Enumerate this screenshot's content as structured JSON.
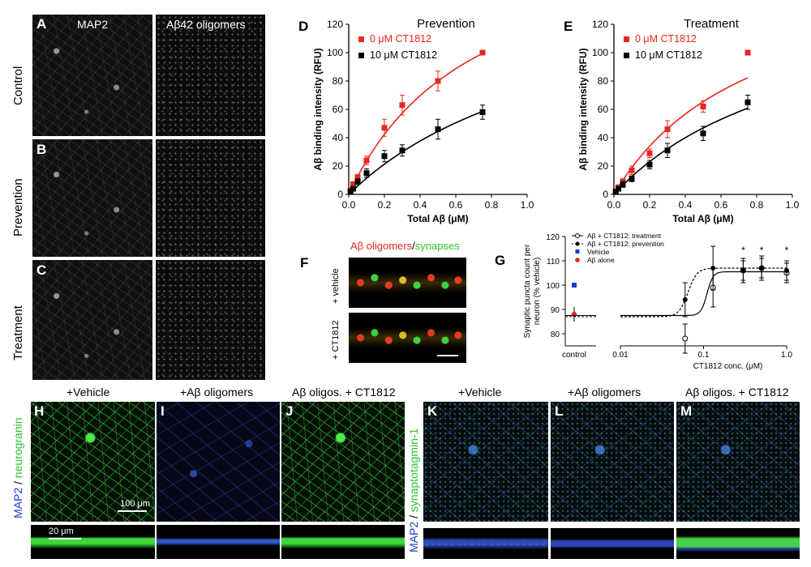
{
  "panels": {
    "A": {
      "letter": "A",
      "col1": "MAP2",
      "col2": "Aβ42 oligomers"
    },
    "B": {
      "letter": "B"
    },
    "C": {
      "letter": "C"
    },
    "rows": [
      "Control",
      "Prevention",
      "Treatment"
    ],
    "F": {
      "letter": "F",
      "title_red": "Aβ oligomers",
      "title_slash": "/",
      "title_green": "synapses",
      "row1": "+ vehicle",
      "row2": "+ CT1812"
    },
    "H": {
      "letter": "H",
      "title": "+Vehicle",
      "side_blue": "MAP2",
      "side_slash": " / ",
      "side_green": "neurogranin",
      "scale1": "100 μm",
      "scale2": "20 μm"
    },
    "I": {
      "letter": "I",
      "title": "+Aβ oligomers"
    },
    "J": {
      "letter": "J",
      "title": "Aβ oligos. + CT1812"
    },
    "K": {
      "letter": "K",
      "title": "+Vehicle",
      "side_blue": "MAP2",
      "side_slash": " / ",
      "side_green": "synaptotagmin-1"
    },
    "L": {
      "letter": "L",
      "title": "+Aβ oligomers"
    },
    "M": {
      "letter": "M",
      "title": "Aβ oligos. + CT1812"
    }
  },
  "colors": {
    "red": "#e8271e",
    "black": "#000000",
    "blue": "#1a3ad6",
    "green": "#2ac52a"
  },
  "chart_data": [
    {
      "panel": "D",
      "type": "scatter",
      "title": "Prevention",
      "xlabel": "Total Aβ (μM)",
      "ylabel": "Aβ binding intensity (RFU)",
      "xlim": [
        0,
        1.0
      ],
      "ylim": [
        0,
        120
      ],
      "xticks": [
        "0.0",
        "0.2",
        "0.4",
        "0.6",
        "0.8",
        "1.0"
      ],
      "yticks": [
        "0",
        "20",
        "40",
        "60",
        "80",
        "100",
        "120"
      ],
      "legend": "top-left",
      "series": [
        {
          "name": "0 μM CT1812",
          "color": "#e8271e",
          "x": [
            0.01,
            0.025,
            0.05,
            0.1,
            0.2,
            0.3,
            0.5,
            0.75
          ],
          "y": [
            3,
            7,
            12,
            24,
            47,
            63,
            80,
            100
          ],
          "err": [
            1,
            2,
            2,
            3,
            6,
            7,
            7,
            0
          ],
          "fit": {
            "bmax": 195,
            "kd": 0.72
          }
        },
        {
          "name": "10 μM CT1812",
          "color": "#000000",
          "x": [
            0.01,
            0.025,
            0.05,
            0.1,
            0.2,
            0.3,
            0.5,
            0.75
          ],
          "y": [
            2,
            4,
            9,
            15,
            27,
            31,
            46,
            58
          ],
          "err": [
            1,
            1,
            2,
            3,
            4,
            4,
            7,
            5
          ],
          "fit": {
            "bmax": 160,
            "kd": 1.3
          }
        }
      ]
    },
    {
      "panel": "E",
      "type": "scatter",
      "title": "Treatment",
      "xlabel": "Total Aβ (μM)",
      "ylabel": "Aβ binding intensity (RFU)",
      "xlim": [
        0,
        1.0
      ],
      "ylim": [
        0,
        120
      ],
      "xticks": [
        "0.0",
        "0.2",
        "0.4",
        "0.6",
        "0.8",
        "1.0"
      ],
      "yticks": [
        "0",
        "20",
        "40",
        "60",
        "80",
        "100",
        "120"
      ],
      "legend": "top-left",
      "series": [
        {
          "name": "0 μM CT1812",
          "color": "#e8271e",
          "x": [
            0.01,
            0.025,
            0.05,
            0.1,
            0.2,
            0.3,
            0.5,
            0.75
          ],
          "y": [
            2,
            5,
            9,
            17,
            29,
            46,
            62,
            100
          ],
          "err": [
            1,
            1,
            2,
            3,
            3,
            6,
            4,
            0
          ],
          "fit": {
            "bmax": 170,
            "kd": 0.8
          }
        },
        {
          "name": "10 μM CT1812",
          "color": "#000000",
          "x": [
            0.01,
            0.025,
            0.05,
            0.1,
            0.2,
            0.3,
            0.5,
            0.75
          ],
          "y": [
            2,
            4,
            7,
            11,
            21,
            31,
            43,
            65
          ],
          "err": [
            1,
            1,
            2,
            2,
            3,
            5,
            5,
            5
          ],
          "fit": {
            "bmax": 150,
            "kd": 1.1
          }
        }
      ]
    },
    {
      "panel": "G",
      "type": "scatter",
      "xlabel": "CT1812 conc. (μM)",
      "ylabel": "Synaptic puncta count per neuron (% vehicle)",
      "xscale": "log",
      "xlim": [
        0.01,
        1.0
      ],
      "ylim": [
        75,
        120
      ],
      "xticks": [
        "0.01",
        "0.1",
        "1.0"
      ],
      "yticks": [
        "80",
        "90",
        "100",
        "110",
        "120"
      ],
      "control_label": "control",
      "legend": "top-left",
      "legend_entries": [
        "Aβ + CT1812: treatment",
        "Aβ + CT1812: prevention",
        "Vehicle",
        "Aβ alone"
      ],
      "significance": "*",
      "control_points": {
        "vehicle": 100,
        "abeta_alone": 88,
        "abeta_err": 3
      },
      "series": [
        {
          "name": "Aβ + CT1812: treatment",
          "style": "open",
          "x": [
            0.06,
            0.13,
            0.3,
            0.5,
            1.0
          ],
          "y": [
            78,
            99,
            106,
            107,
            105
          ],
          "err": [
            6,
            8,
            5,
            5,
            4
          ],
          "fit": {
            "bottom": 87.5,
            "top": 105.5,
            "ec50": 0.11,
            "hill": 12
          }
        },
        {
          "name": "Aβ + CT1812: prevention",
          "style": "filled",
          "x": [
            0.06,
            0.13,
            0.3,
            0.5,
            1.0
          ],
          "y": [
            94,
            107,
            106,
            107,
            106
          ],
          "err": [
            7,
            9,
            4,
            4,
            4
          ],
          "fit": {
            "bottom": 87,
            "top": 107,
            "ec50": 0.065,
            "hill": 8
          }
        }
      ],
      "stars_x": [
        0.3,
        0.5,
        1.0
      ]
    }
  ]
}
